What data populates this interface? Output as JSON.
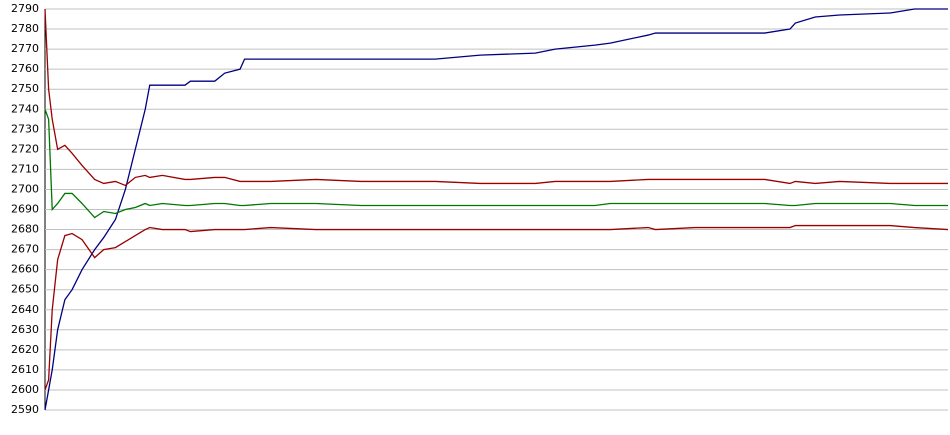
{
  "chart_data": {
    "type": "line",
    "x": [
      0,
      0.4,
      0.8,
      1.4,
      2.2,
      3,
      4.1,
      5.5,
      6.5,
      7.8,
      8.9,
      10,
      11.1,
      11.6,
      13,
      15.5,
      16.1,
      18.8,
      19.9,
      21.6,
      22.1,
      25,
      30,
      35,
      43.2,
      48.2,
      54.3,
      56.5,
      60.9,
      62.6,
      66.8,
      67.6,
      72,
      79.7,
      82.5,
      83.1,
      85.3,
      88,
      93.6,
      96.3,
      100
    ],
    "xlim": [
      0,
      100
    ],
    "ylim": [
      2590,
      2790
    ],
    "yticks": [
      2590,
      2600,
      2610,
      2620,
      2630,
      2640,
      2650,
      2660,
      2670,
      2680,
      2690,
      2700,
      2710,
      2720,
      2730,
      2740,
      2750,
      2760,
      2770,
      2780,
      2790
    ],
    "grid": true,
    "series": [
      {
        "color": "#000080",
        "values": [
          2590,
          2600,
          2610,
          2630,
          2645,
          2650,
          2660,
          2670,
          2676,
          2685,
          2700,
          2720,
          2740,
          2752,
          2752,
          2752,
          2754,
          2754,
          2758,
          2760,
          2765,
          2765,
          2765,
          2765,
          2765,
          2767,
          2768,
          2770,
          2772,
          2773,
          2777,
          2778,
          2778,
          2778,
          2780,
          2783,
          2786,
          2787,
          2788,
          2790,
          2790
        ]
      },
      {
        "color": "#990000",
        "values": [
          2790,
          2750,
          2735,
          2720,
          2722,
          2718,
          2712,
          2705,
          2703,
          2704,
          2702,
          2706,
          2707,
          2706,
          2707,
          2705,
          2705,
          2706,
          2706,
          2704,
          2704,
          2704,
          2705,
          2704,
          2704,
          2703,
          2703,
          2704,
          2704,
          2704,
          2705,
          2705,
          2705,
          2705,
          2703,
          2704,
          2703,
          2704,
          2703,
          2703,
          2703
        ]
      },
      {
        "color": "#990000",
        "values": [
          2600,
          2605,
          2640,
          2665,
          2677,
          2678,
          2675,
          2666,
          2670,
          2671,
          2674,
          2677,
          2680,
          2681,
          2680,
          2680,
          2679,
          2680,
          2680,
          2680,
          2680,
          2681,
          2680,
          2680,
          2680,
          2680,
          2680,
          2680,
          2680,
          2680,
          2681,
          2680,
          2681,
          2681,
          2681,
          2682,
          2682,
          2682,
          2682,
          2681,
          2680
        ]
      },
      {
        "color": "#007700",
        "values": [
          2740,
          2735,
          2690,
          2693,
          2698,
          2698,
          2693,
          2686,
          2689,
          2688,
          2690,
          2691,
          2693,
          2692,
          2693,
          2692,
          2692,
          2693,
          2693,
          2692,
          2692,
          2693,
          2693,
          2692,
          2692,
          2692,
          2692,
          2692,
          2692,
          2693,
          2693,
          2693,
          2693,
          2693,
          2692,
          2692,
          2693,
          2693,
          2693,
          2692,
          2692
        ]
      }
    ]
  }
}
